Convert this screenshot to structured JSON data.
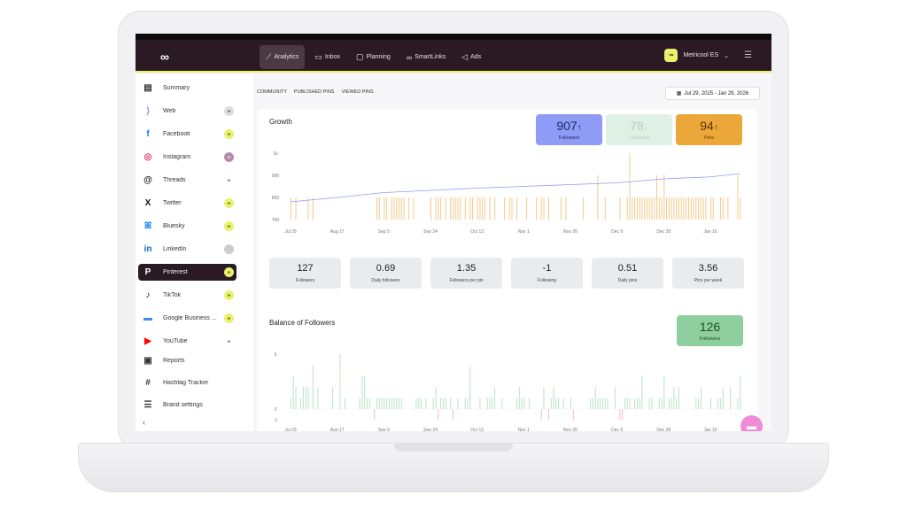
{
  "header": {
    "logo": "∞",
    "nav": [
      {
        "label": "Analytics",
        "icon": "chart-line-icon",
        "active": true
      },
      {
        "label": "Inbox",
        "icon": "chat-icon"
      },
      {
        "label": "Planning",
        "icon": "calendar-icon"
      },
      {
        "label": "SmartLinks",
        "icon": "link-icon"
      },
      {
        "label": "Ads",
        "icon": "megaphone-icon"
      }
    ],
    "account": {
      "badge": "∞",
      "name": "Metricool ES"
    }
  },
  "sidebar": {
    "items": [
      {
        "label": "Summary",
        "icon": "clipboard-icon",
        "color": "#333",
        "badge": ""
      },
      {
        "label": "Web",
        "icon": "rss-icon",
        "color": "#8c8cf0",
        "badge": "gray"
      },
      {
        "label": "Facebook",
        "icon": "facebook-icon",
        "color": "#1877f2",
        "badge": "yellow"
      },
      {
        "label": "Instagram",
        "icon": "instagram-icon",
        "color": "#e1306c",
        "badge": "purple"
      },
      {
        "label": "Threads",
        "icon": "threads-icon",
        "color": "#222",
        "badge": "plain"
      },
      {
        "label": "Twitter",
        "icon": "x-icon",
        "color": "#111",
        "badge": "yellow"
      },
      {
        "label": "Bluesky",
        "icon": "butterfly-icon",
        "color": "#1185fe",
        "badge": "yellow"
      },
      {
        "label": "LinkedIn",
        "icon": "linkedin-icon",
        "color": "#0a66c2",
        "badge": "avatar"
      },
      {
        "label": "Pinterest",
        "icon": "pinterest-icon",
        "color": "#fff",
        "badge": "yellow",
        "active": true
      },
      {
        "label": "TikTok",
        "icon": "tiktok-icon",
        "color": "#111",
        "badge": "yellow"
      },
      {
        "label": "Google Business ...",
        "icon": "google-business-icon",
        "color": "#4285f4",
        "badge": "yellow"
      },
      {
        "label": "YouTube",
        "icon": "youtube-icon",
        "color": "#ff0000",
        "badge": "plain"
      },
      {
        "label": "Reports",
        "icon": "report-icon",
        "color": "#333",
        "badge": ""
      },
      {
        "label": "Hashtag Tracker",
        "icon": "hashtag-icon",
        "color": "#333",
        "badge": ""
      },
      {
        "label": "Brand settings",
        "icon": "sliders-icon",
        "color": "#333",
        "badge": ""
      }
    ],
    "collapse": "‹"
  },
  "tabs": [
    "COMMUNITY",
    "PUBLISHED PINS",
    "VIEWED PINS"
  ],
  "date_range": "Jul 29, 2025 - Jan 29, 2026",
  "growth": {
    "title": "Growth",
    "kpis": [
      {
        "value": "907",
        "arrow": "↑",
        "label": "Followers",
        "bg": "#8e9cf5",
        "fg": "#1f2a6b"
      },
      {
        "value": "78",
        "arrow": "↓",
        "label": "Following",
        "bg": "#dff0e5",
        "fg": "#b7cfc0"
      },
      {
        "value": "94",
        "arrow": "↑",
        "label": "Pins",
        "bg": "#eca73a",
        "fg": "#5a3600"
      }
    ]
  },
  "stats": [
    {
      "value": "127",
      "label": "Followers"
    },
    {
      "value": "0.69",
      "label": "Daily followers"
    },
    {
      "value": "1.35",
      "label": "Followers per pin"
    },
    {
      "value": "-1",
      "label": "Following"
    },
    {
      "value": "0.51",
      "label": "Daily pins"
    },
    {
      "value": "3.56",
      "label": "Pins per week"
    }
  ],
  "balance": {
    "title": "Balance of Followers",
    "kpi": {
      "value": "126",
      "label": "Followers",
      "bg": "#8fcf9f",
      "fg": "#1e4a2a"
    }
  },
  "chart_data": [
    {
      "type": "line+bar",
      "yticks": [
        "1k",
        "900",
        "800",
        "700"
      ],
      "ylim": [
        700,
        1000
      ],
      "xticks": [
        "Jul 29",
        "Aug 17",
        "Sep 5",
        "Sep 24",
        "Oct 13",
        "Nov 1",
        "Nov 20",
        "Dec 9",
        "Dec 28",
        "Jan 16"
      ],
      "followers_line": [
        {
          "x": "Jul 29",
          "y": 780
        },
        {
          "x": "Aug 17",
          "y": 800
        },
        {
          "x": "Sep 5",
          "y": 822
        },
        {
          "x": "Sep 24",
          "y": 832
        },
        {
          "x": "Oct 13",
          "y": 842
        },
        {
          "x": "Nov 1",
          "y": 850
        },
        {
          "x": "Nov 20",
          "y": 858
        },
        {
          "x": "Dec 9",
          "y": 866
        },
        {
          "x": "Dec 28",
          "y": 884
        },
        {
          "x": "Jan 16",
          "y": 893
        },
        {
          "x": "Jan 29",
          "y": 907
        }
      ],
      "line_color": "#8e9cf5",
      "bar_color": "#f5c98a",
      "pins_daily": [
        1,
        0,
        1,
        0,
        0,
        0,
        0,
        1,
        0,
        1,
        0,
        0,
        0,
        0,
        0,
        0,
        0,
        0,
        0,
        0,
        0,
        0,
        0,
        0,
        0,
        0,
        0,
        0,
        0,
        0,
        0,
        0,
        0,
        0,
        0,
        1,
        1,
        0,
        1,
        1,
        0,
        1,
        1,
        1,
        1,
        1,
        1,
        0,
        1,
        0,
        1,
        0,
        0,
        0,
        0,
        0,
        0,
        1,
        0,
        1,
        1,
        1,
        0,
        1,
        0,
        1,
        1,
        1,
        1,
        1,
        0,
        1,
        0,
        1,
        1,
        0,
        1,
        1,
        1,
        1,
        0,
        1,
        0,
        1,
        0,
        0,
        0,
        1,
        0,
        1,
        1,
        0,
        1,
        0,
        0,
        0,
        1,
        0,
        0,
        0,
        1,
        0,
        1,
        1,
        0,
        1,
        0,
        0,
        0,
        0,
        1,
        0,
        1,
        0,
        0,
        0,
        0,
        0,
        0,
        1,
        0,
        0,
        0,
        0,
        0,
        2,
        0,
        0,
        1,
        0,
        0,
        0,
        0,
        0,
        1,
        0,
        0,
        1,
        3,
        1,
        1,
        1,
        1,
        1,
        1,
        1,
        1,
        1,
        1,
        2,
        1,
        1,
        2,
        1,
        1,
        1,
        1,
        1,
        1,
        1,
        1,
        1,
        1,
        1,
        1,
        1,
        1,
        1,
        1,
        1,
        0,
        1,
        1,
        0,
        0,
        1,
        1,
        0,
        1,
        0,
        0,
        0,
        2,
        1
      ]
    },
    {
      "type": "bar",
      "yticks": [
        "5",
        "0",
        "-1"
      ],
      "ylim": [
        -1,
        5
      ],
      "xticks": [
        "Jul 29",
        "Aug 17",
        "Sep 5",
        "Sep 24",
        "Oct 13",
        "Nov 1",
        "Nov 20",
        "Dec 9",
        "Dec 28",
        "Jan 16"
      ],
      "positive_color": "#b9e2c6",
      "negative_color": "#f6b8cf",
      "balance_daily": [
        1,
        3,
        2,
        0,
        1,
        2,
        2,
        2,
        0,
        4,
        0,
        2,
        0,
        0,
        0,
        0,
        0,
        2,
        0,
        0,
        5,
        0,
        1,
        0,
        0,
        0,
        0,
        0,
        1,
        3,
        3,
        1,
        1,
        0,
        -1,
        1,
        1,
        1,
        1,
        1,
        1,
        1,
        1,
        1,
        1,
        1,
        0,
        0,
        0,
        0,
        0,
        1,
        1,
        1,
        0,
        1,
        0,
        0,
        1,
        2,
        -1,
        1,
        1,
        1,
        0,
        1,
        -1,
        0,
        1,
        0,
        0,
        1,
        1,
        4,
        0,
        0,
        0,
        1,
        0,
        0,
        1,
        1,
        1,
        2,
        0,
        0,
        1,
        0,
        0,
        0,
        0,
        0,
        1,
        2,
        1,
        1,
        0,
        1,
        0,
        0,
        0,
        0,
        -1,
        2,
        0,
        -1,
        1,
        2,
        1,
        1,
        0,
        1,
        0,
        0,
        1,
        -1,
        0,
        0,
        0,
        0,
        0,
        0,
        1,
        1,
        2,
        1,
        1,
        1,
        1,
        1,
        0,
        0,
        2,
        0,
        -1,
        -1,
        1,
        1,
        1,
        0,
        1,
        1,
        1,
        3,
        0,
        0,
        1,
        1,
        0,
        0,
        1,
        1,
        3,
        0,
        1,
        1,
        2,
        1,
        2,
        0,
        0,
        0,
        0,
        0,
        0,
        1,
        1,
        2,
        0,
        0,
        0,
        1,
        0,
        0,
        1,
        1,
        2,
        0,
        0,
        2,
        0,
        0,
        1,
        3
      ]
    }
  ],
  "chat_icon": "chat-bubble-icon"
}
